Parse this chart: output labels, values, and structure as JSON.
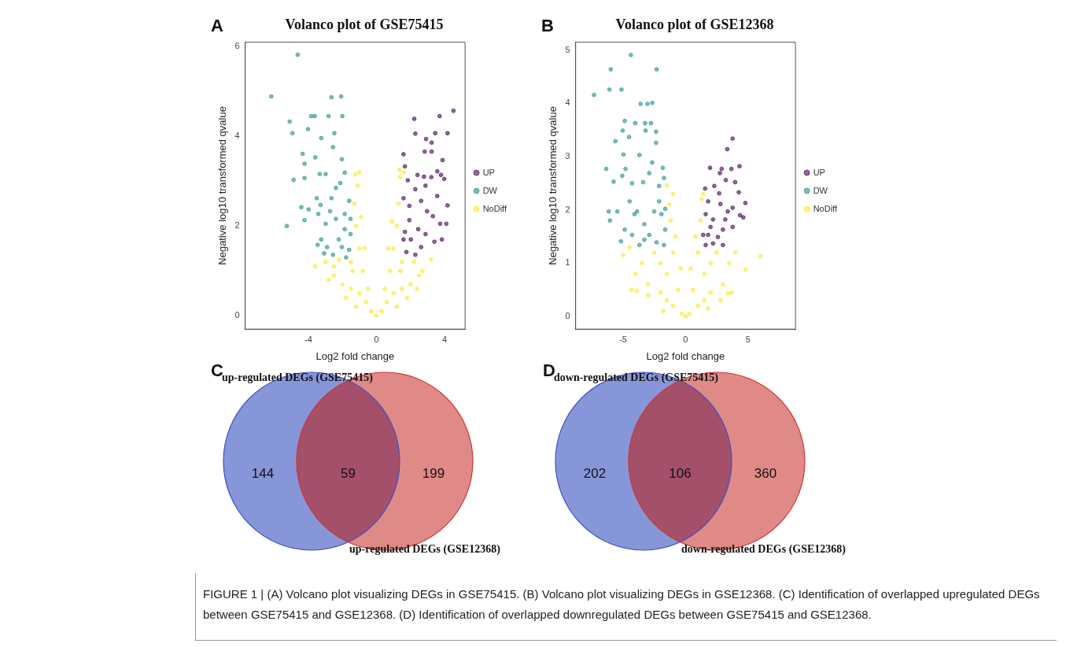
{
  "chart_data": [
    {
      "type": "scatter",
      "title": "Volanco plot of GSE75415",
      "xlabel": "Log2 fold change",
      "ylabel": "Negative log10 transformed qvalue",
      "annotations": [
        "A"
      ],
      "xlim": [
        -7.7,
        5.2
      ],
      "xticks": [
        -4,
        0,
        4
      ],
      "ylim": [
        -0.3,
        6.1
      ],
      "yticks": [
        0,
        2,
        4,
        6
      ],
      "grid": false,
      "legend": "right",
      "marker": "circle",
      "series": [
        {
          "name": "UP",
          "color": "#440154",
          "x": [
            4.52,
            2.22,
            2.28,
            3.71,
            4.17,
            3.45,
            2.91,
            3.24,
            1.59,
            1.67,
            2.83,
            3.24,
            3.88,
            2.41,
            3.57,
            3.79,
            3.98,
            1.84,
            2.79,
            3.22,
            2.88,
            2.28,
            3.57,
            4.17,
            3.74,
            4.1,
            3.84,
            3.4,
            1.59,
            1.93,
            2.62,
            2.97,
            3.31,
            1.67,
            2.02,
            2.45,
            1.76,
            2.28,
            2.62,
            1.59,
            1.93,
            2.88
          ],
          "values": [
            4.57,
            4.39,
            4.06,
            4.45,
            4.07,
            4.07,
            3.94,
            3.86,
            3.6,
            3.33,
            3.66,
            3.66,
            3.47,
            3.14,
            3.22,
            3.14,
            3.05,
            3.02,
            3.1,
            3.09,
            2.9,
            2.82,
            2.67,
            2.46,
            2.05,
            2.05,
            1.7,
            1.65,
            2.62,
            2.45,
            2.56,
            2.33,
            2.22,
            1.87,
            1.7,
            1.93,
            1.42,
            1.36,
            1.53,
            1.7,
            2.13,
            1.82
          ]
        },
        {
          "name": "DW",
          "color": "#21908c",
          "x": [
            -6.17,
            -4.62,
            -5.09,
            -4.93,
            -5.26,
            -4.86,
            -4.33,
            -4.22,
            -4.22,
            -4.02,
            -3.83,
            -3.62,
            -4.41,
            -3.98,
            -4.22,
            -3.59,
            -3.24,
            -2.81,
            -2.64,
            -2.07,
            -2.0,
            -2.47,
            -2.55,
            -2.03,
            -3.33,
            -2.98,
            -3.5,
            -3.28,
            -2.98,
            -2.64,
            -2.38,
            -2.12,
            -1.86,
            -1.6,
            -1.86,
            -3.24,
            -2.9,
            -2.55,
            -2.21,
            -1.86,
            -1.6,
            -1.78,
            -2.38,
            -3.41,
            -3.07,
            -1.52,
            -1.52,
            -2.72,
            -3.45,
            -2.03
          ],
          "values": [
            4.89,
            5.82,
            4.33,
            4.07,
            2.0,
            3.03,
            3.61,
            3.39,
            3.07,
            4.16,
            4.45,
            4.45,
            2.42,
            2.37,
            2.13,
            3.53,
            3.96,
            4.45,
            4.87,
            4.89,
            4.45,
            4.07,
            3.76,
            3.49,
            3.16,
            3.16,
            2.62,
            2.47,
            2.05,
            2.62,
            2.85,
            2.96,
            3.19,
            2.56,
            2.27,
            1.7,
            1.53,
            1.36,
            1.7,
            1.93,
            1.47,
            1.3,
            2.16,
            2.27,
            1.39,
            1.82,
            2.16,
            2.33,
            1.58,
            1.53
          ]
        },
        {
          "name": "NoDiff",
          "color": "#fde725",
          "x": [
            0,
            -0.3,
            0.3,
            -0.6,
            0.6,
            -1.0,
            1.0,
            -1.5,
            1.5,
            -2.0,
            2.0,
            -2.5,
            2.5,
            -2.5,
            2.7,
            -3.0,
            3.2,
            -3.6,
            -2.2,
            2.2,
            -1.8,
            1.8,
            -1.2,
            1.2,
            -0.8,
            0.8,
            -1.0,
            1.0,
            -1.2,
            1.2,
            -1.3,
            1.3,
            -1.1,
            -1.0,
            -1.25,
            1.4,
            1.6,
            1.35,
            -1.4,
            1.4,
            -0.5,
            0.5,
            -1.5,
            1.5,
            -2.8,
            2.4,
            -0.9,
            0.9,
            -0.7,
            0.7
          ],
          "values": [
            0,
            0.1,
            0.1,
            0.3,
            0.3,
            0.5,
            0.5,
            0.6,
            0.6,
            0.7,
            0.7,
            0.9,
            0.9,
            1.1,
            1.0,
            1.2,
            1.26,
            1.1,
            1.25,
            1.2,
            0.4,
            0.4,
            0.2,
            0.2,
            1.0,
            1.0,
            1.5,
            1.5,
            2.0,
            2.0,
            2.5,
            2.5,
            2.9,
            3.2,
            3.15,
            3.1,
            3.2,
            3.25,
            1.0,
            1.0,
            0.6,
            0.6,
            1.2,
            1.2,
            0.8,
            0.6,
            2.2,
            2.1,
            1.5,
            1.5
          ]
        }
      ]
    },
    {
      "type": "scatter",
      "title": "Volanco plot of GSE12368",
      "xlabel": "Log2 fold change",
      "ylabel": "Negative log10 transformed qvalue",
      "annotations": [
        "B"
      ],
      "xlim": [
        -8.8,
        8.8
      ],
      "xticks": [
        -5,
        0,
        5
      ],
      "ylim": [
        -0.24,
        5.15
      ],
      "yticks": [
        0,
        1,
        2,
        3,
        4,
        5
      ],
      "grid": false,
      "legend": "right",
      "marker": "circle",
      "series": [
        {
          "name": "UP",
          "color": "#440154",
          "x": [
            3.77,
            3.34,
            4.32,
            1.96,
            2.89,
            3.67,
            2.75,
            3.97,
            3.22,
            1.57,
            2.3,
            2.69,
            4.26,
            4.79,
            1.81,
            2.79,
            3.77,
            3.38,
            4.36,
            4.62,
            3.77,
            1.61,
            2.2,
            2.99,
            1.81,
            2.59,
            1.61,
            2.2,
            2.99,
            2.0,
            3.18,
            1.41
          ],
          "values": [
            3.34,
            3.14,
            2.82,
            2.79,
            2.77,
            2.77,
            2.69,
            2.52,
            2.56,
            2.4,
            2.45,
            2.31,
            2.33,
            2.13,
            2.16,
            2.11,
            2.04,
            1.97,
            1.9,
            1.86,
            1.68,
            1.92,
            1.82,
            1.63,
            1.53,
            1.49,
            1.34,
            1.37,
            1.34,
            1.68,
            1.82,
            1.53
          ]
        },
        {
          "name": "DW",
          "color": "#21908c",
          "x": [
            -7.33,
            -5.99,
            -6.09,
            -5.13,
            -4.38,
            -2.32,
            -3.6,
            -3.05,
            -2.67,
            -4.87,
            -4.03,
            -3.24,
            -2.77,
            -5.62,
            -5.03,
            -4.52,
            -3.2,
            -2.36,
            -2.36,
            -4.97,
            -3.69,
            -6.35,
            -4.81,
            -2.67,
            -1.83,
            -5.76,
            -5.07,
            -4.28,
            -3.4,
            -2.91,
            -2.12,
            -1.73,
            -6.15,
            -6.05,
            -5.46,
            -5.17,
            -4.87,
            -4.48,
            -4.09,
            -3.89,
            -3.3,
            -2.51,
            -1.93,
            -1.63,
            -2.91,
            -2.32,
            -1.73,
            -3.69,
            -4.28,
            -2.12,
            -1.63,
            -3.3
          ],
          "values": [
            4.16,
            4.64,
            4.26,
            4.26,
            4.91,
            4.64,
            3.99,
            3.99,
            4.01,
            3.67,
            3.63,
            3.63,
            3.63,
            3.29,
            3.49,
            3.37,
            3.49,
            3.47,
            3.26,
            3.04,
            3.03,
            2.77,
            2.77,
            2.89,
            2.79,
            2.53,
            2.64,
            2.5,
            2.52,
            2.69,
            2.45,
            2.6,
            1.97,
            1.8,
            1.97,
            1.41,
            1.63,
            2.16,
            1.92,
            1.97,
            1.73,
            1.97,
            1.92,
            1.63,
            1.53,
            1.39,
            1.34,
            1.34,
            1.53,
            2.16,
            2.02,
            1.44
          ]
        },
        {
          "name": "NoDiff",
          "color": "#fde725",
          "x": [
            0,
            -0.3,
            0.3,
            -1,
            1,
            -1.5,
            1.5,
            -2,
            2,
            -3,
            3,
            -4.3,
            -3.9,
            3.4,
            3.7,
            -4.0,
            -3.5,
            3.5,
            -5,
            4.0,
            6.0,
            4.8,
            -4.5,
            -2.5,
            2.5,
            -1.5,
            1.5,
            -0.6,
            0.6,
            -1.0,
            1.0,
            -1.2,
            1.2,
            -1.3,
            1.3,
            -1.0,
            1.4,
            -1.5,
            -0.8,
            0.8,
            -2.0,
            2.0,
            -3.0,
            2.8,
            -1.8,
            1.8,
            -0.4,
            0.4
          ],
          "values": [
            0,
            0.05,
            0.05,
            0.2,
            0.2,
            0.3,
            0.3,
            0.45,
            0.45,
            0.6,
            0.6,
            0.5,
            0.48,
            0.43,
            0.45,
            0.8,
            1.0,
            1.0,
            1.15,
            1.2,
            1.13,
            0.88,
            1.3,
            1.2,
            1.2,
            0.8,
            0.8,
            0.5,
            0.5,
            1.2,
            1.2,
            1.8,
            1.8,
            2.1,
            2.2,
            2.3,
            2.3,
            2.46,
            1.5,
            1.5,
            1.0,
            1.0,
            0.4,
            0.3,
            0.1,
            0.15,
            0.9,
            0.9
          ]
        }
      ]
    },
    {
      "type": "other",
      "annotations": [
        "C",
        "up-regulated DEGs (GSE75415)",
        "up-regulated DEGs (GSE12368)"
      ],
      "categories": [
        null,
        null,
        null
      ],
      "values": [
        144,
        59,
        199
      ],
      "colors": [
        "#8796d8",
        "#a4506b",
        "#e08a88"
      ],
      "data_labels": true
    },
    {
      "type": "other",
      "annotations": [
        "D",
        "down-regulated DEGs (GSE75415)",
        "down-regulated DEGs (GSE12368)"
      ],
      "categories": [
        null,
        null,
        null
      ],
      "values": [
        202,
        106,
        360
      ],
      "colors": [
        "#8796d8",
        "#a4506b",
        "#e08a88"
      ],
      "data_labels": true
    },
    {
      "type": "other",
      "annotations": [
        "FIGURE 1 | (A) Volcano plot visualizing DEGs in GSE75415. (B) Volcano plot visualizing DEGs in GSE12368. (C) Identification of overlapped upregulated DEGs between GSE75415 and GSE12368. (D) Identification of overlapped downregulated DEGs between GSE75415 and GSE12368."
      ]
    }
  ]
}
